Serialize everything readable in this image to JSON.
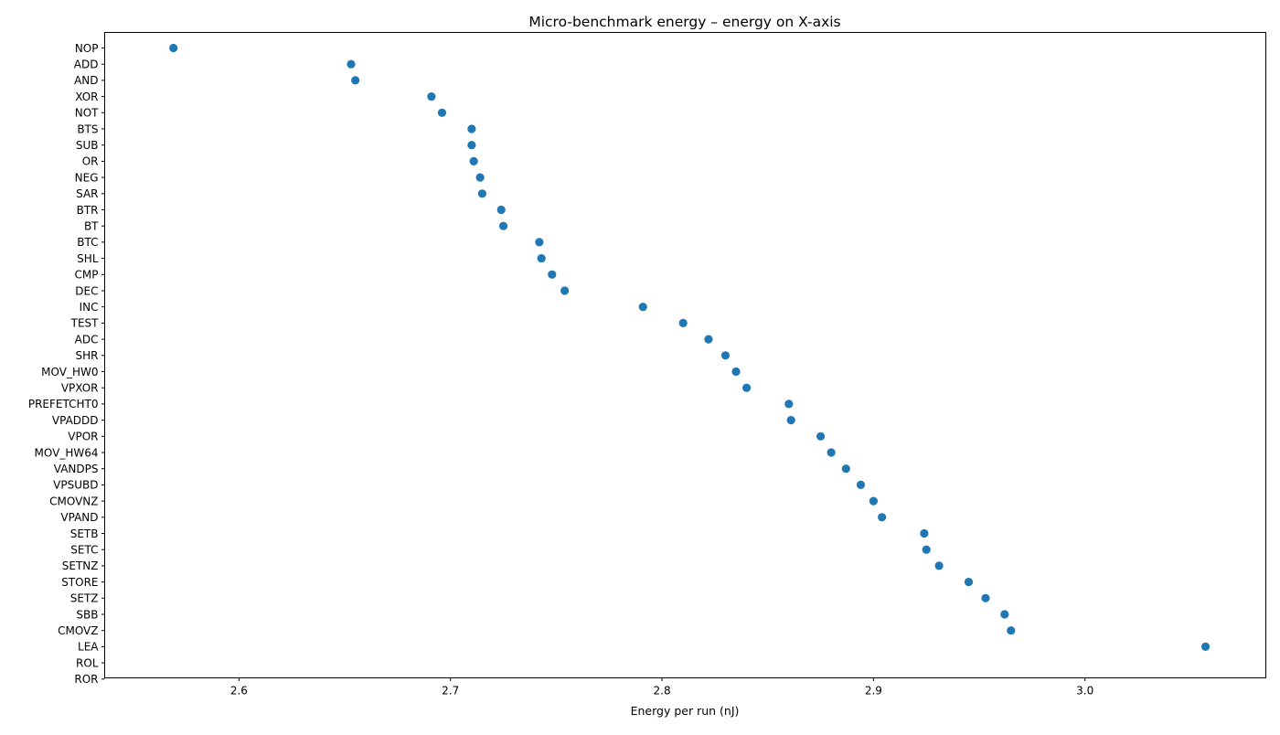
{
  "chart_data": {
    "type": "scatter",
    "title": "Micro-benchmark energy – energy on X-axis",
    "xlabel": "Energy per run (nJ)",
    "ylabel": "",
    "xlim": [
      2.5365,
      3.0855
    ],
    "x_ticks": [
      2.6,
      2.7,
      2.8,
      2.9,
      3.0
    ],
    "x_tick_labels": [
      "2.6",
      "2.7",
      "2.8",
      "2.9",
      "3.0"
    ],
    "grid": false,
    "legend": "none",
    "marker_color": "#1f77b4",
    "categories": [
      "NOP",
      "ADD",
      "AND",
      "XOR",
      "NOT",
      "BTS",
      "SUB",
      "OR",
      "NEG",
      "SAR",
      "BTR",
      "BT",
      "BTC",
      "SHL",
      "CMP",
      "DEC",
      "INC",
      "TEST",
      "ADC",
      "SHR",
      "MOV_HW0",
      "VPXOR",
      "PREFETCHT0",
      "VPADDD",
      "VPOR",
      "MOV_HW64",
      "VANDPS",
      "VPSUBD",
      "CMOVNZ",
      "VPAND",
      "SETB",
      "SETC",
      "SETNZ",
      "STORE",
      "SETZ",
      "SBB",
      "CMOVZ",
      "LEA",
      "ROL",
      "ROR"
    ],
    "values": [
      2.569,
      2.653,
      2.655,
      2.691,
      2.696,
      2.71,
      2.71,
      2.711,
      2.714,
      2.715,
      2.724,
      2.725,
      2.742,
      2.743,
      2.748,
      2.754,
      2.791,
      2.81,
      2.822,
      2.83,
      2.835,
      2.84,
      2.86,
      2.861,
      2.875,
      2.88,
      2.887,
      2.894,
      2.9,
      2.904,
      2.924,
      2.925,
      2.931,
      2.945,
      2.953,
      2.962,
      2.965,
      3.057,
      null,
      null
    ]
  }
}
